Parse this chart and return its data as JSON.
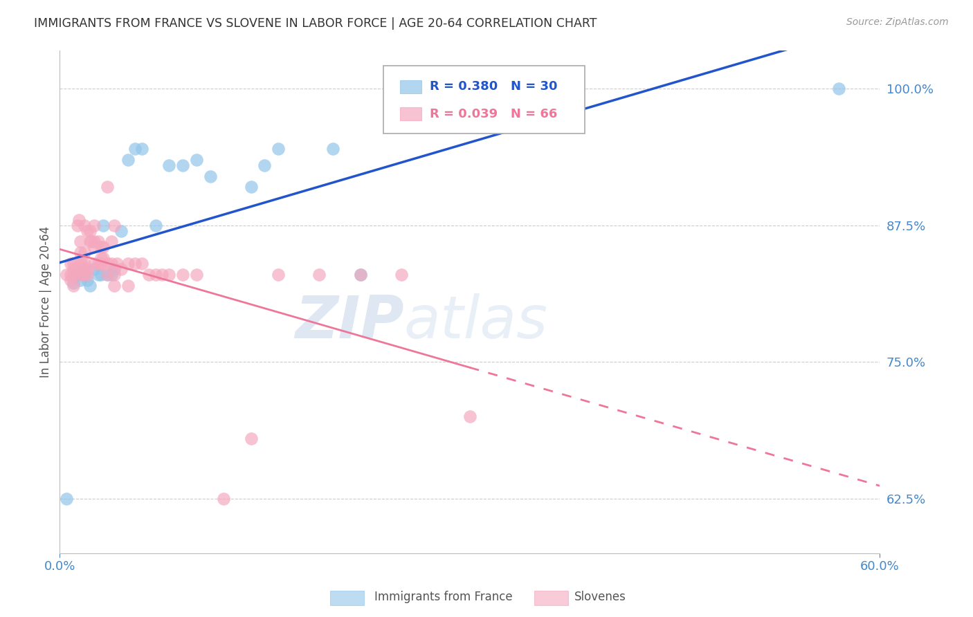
{
  "title": "IMMIGRANTS FROM FRANCE VS SLOVENE IN LABOR FORCE | AGE 20-64 CORRELATION CHART",
  "source": "Source: ZipAtlas.com",
  "ylabel": "In Labor Force | Age 20-64",
  "ytick_labels": [
    "62.5%",
    "75.0%",
    "87.5%",
    "100.0%"
  ],
  "ytick_values": [
    0.625,
    0.75,
    0.875,
    1.0
  ],
  "xlim": [
    0.0,
    0.6
  ],
  "ylim": [
    0.575,
    1.035
  ],
  "france_R": 0.38,
  "france_N": 30,
  "slovene_R": 0.039,
  "slovene_N": 66,
  "france_color": "#92C5EA",
  "slovene_color": "#F5A8BE",
  "france_line_color": "#2255CC",
  "slovene_line_color": "#EE7799",
  "background_color": "#FFFFFF",
  "grid_color": "#CCCCCC",
  "title_color": "#333333",
  "axis_label_color": "#555555",
  "tick_color": "#4488CC",
  "france_x": [
    0.005,
    0.01,
    0.012,
    0.015,
    0.017,
    0.018,
    0.02,
    0.022,
    0.025,
    0.028,
    0.03,
    0.032,
    0.035,
    0.038,
    0.04,
    0.045,
    0.05,
    0.055,
    0.06,
    0.07,
    0.08,
    0.09,
    0.1,
    0.11,
    0.14,
    0.15,
    0.16,
    0.2,
    0.22,
    0.57
  ],
  "france_y": [
    0.625,
    0.822,
    0.83,
    0.825,
    0.835,
    0.83,
    0.825,
    0.82,
    0.835,
    0.83,
    0.83,
    0.875,
    0.83,
    0.83,
    0.835,
    0.87,
    0.935,
    0.945,
    0.945,
    0.875,
    0.93,
    0.93,
    0.935,
    0.92,
    0.91,
    0.93,
    0.945,
    0.945,
    0.83,
    1.0
  ],
  "slovene_x": [
    0.005,
    0.008,
    0.008,
    0.008,
    0.01,
    0.01,
    0.01,
    0.01,
    0.012,
    0.013,
    0.014,
    0.015,
    0.015,
    0.015,
    0.015,
    0.016,
    0.017,
    0.017,
    0.018,
    0.018,
    0.018,
    0.02,
    0.02,
    0.02,
    0.022,
    0.022,
    0.023,
    0.025,
    0.025,
    0.025,
    0.025,
    0.028,
    0.028,
    0.03,
    0.03,
    0.03,
    0.03,
    0.032,
    0.032,
    0.035,
    0.035,
    0.035,
    0.038,
    0.038,
    0.04,
    0.04,
    0.04,
    0.042,
    0.045,
    0.05,
    0.05,
    0.055,
    0.06,
    0.065,
    0.07,
    0.075,
    0.08,
    0.09,
    0.1,
    0.12,
    0.14,
    0.16,
    0.19,
    0.22,
    0.25,
    0.3
  ],
  "slovene_y": [
    0.83,
    0.825,
    0.84,
    0.83,
    0.83,
    0.84,
    0.835,
    0.82,
    0.835,
    0.875,
    0.88,
    0.83,
    0.84,
    0.85,
    0.86,
    0.84,
    0.83,
    0.835,
    0.84,
    0.85,
    0.875,
    0.83,
    0.835,
    0.87,
    0.86,
    0.87,
    0.86,
    0.84,
    0.855,
    0.86,
    0.875,
    0.84,
    0.86,
    0.84,
    0.84,
    0.845,
    0.855,
    0.845,
    0.855,
    0.91,
    0.83,
    0.84,
    0.84,
    0.86,
    0.875,
    0.82,
    0.83,
    0.84,
    0.835,
    0.84,
    0.82,
    0.84,
    0.84,
    0.83,
    0.83,
    0.83,
    0.83,
    0.83,
    0.83,
    0.625,
    0.68,
    0.83,
    0.83,
    0.83,
    0.83,
    0.7
  ],
  "watermark_zip": "ZIP",
  "watermark_atlas": "atlas",
  "watermark_color_zip": "#C5D5E8",
  "watermark_color_atlas": "#B8CCE0"
}
